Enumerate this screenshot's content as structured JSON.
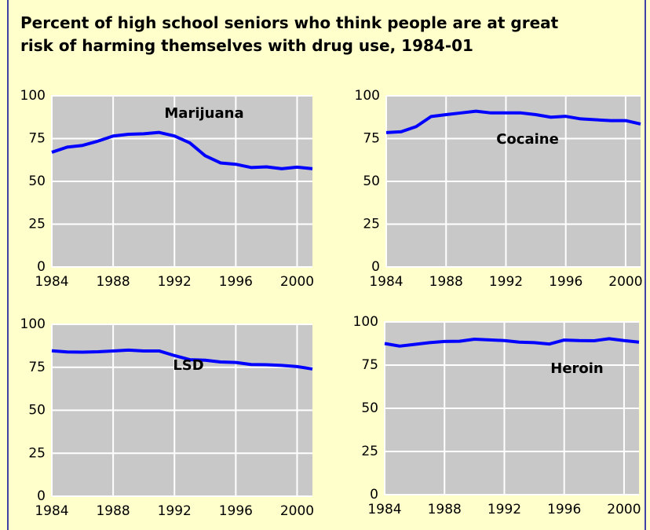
{
  "title": "Percent of high school seniors who think people are at great risk of harming themselves with drug use, 1984-01",
  "chart_data": [
    {
      "type": "line",
      "x": [
        1984,
        1985,
        1986,
        1987,
        1988,
        1989,
        1990,
        1991,
        1992,
        1993,
        1994,
        1995,
        1996,
        1997,
        1998,
        1999,
        2000,
        2001
      ],
      "series": [
        {
          "name": "Marijuana",
          "color": "#0000ff",
          "values": [
            67,
            70,
            71,
            73.5,
            76.5,
            77.5,
            77.8,
            78.6,
            76.5,
            72.5,
            65,
            60.8,
            60,
            58.1,
            58.5,
            57.4,
            58.3,
            57.4
          ]
        }
      ],
      "xlim": [
        1984,
        2001
      ],
      "xticks": [
        1984,
        1988,
        1992,
        1996,
        2000
      ],
      "ylim": [
        0,
        100
      ],
      "yticks": [
        0,
        25,
        50,
        75,
        100
      ],
      "grid": true
    },
    {
      "type": "line",
      "x": [
        1984,
        1985,
        1986,
        1987,
        1988,
        1989,
        1990,
        1991,
        1992,
        1993,
        1994,
        1995,
        1996,
        1997,
        1998,
        1999,
        2000,
        2001
      ],
      "series": [
        {
          "name": "Cocaine",
          "color": "#0000ff",
          "values": [
            78.5,
            79,
            82,
            87.9,
            89,
            90,
            91,
            90,
            90,
            90,
            89,
            87.5,
            88,
            86.5,
            86,
            85.5,
            85.5,
            83.5
          ]
        }
      ],
      "xlim": [
        1984,
        2001
      ],
      "xticks": [
        1984,
        1988,
        1992,
        1996,
        2000
      ],
      "ylim": [
        0,
        100
      ],
      "yticks": [
        0,
        25,
        50,
        75,
        100
      ],
      "grid": true
    },
    {
      "type": "line",
      "x": [
        1984,
        1985,
        1986,
        1987,
        1988,
        1989,
        1990,
        1991,
        1992,
        1993,
        1994,
        1995,
        1996,
        1997,
        1998,
        1999,
        2000,
        2001
      ],
      "series": [
        {
          "name": "LSD",
          "color": "#0000ff",
          "values": [
            84.6,
            83.9,
            83.8,
            84,
            84.5,
            85,
            84.5,
            84.5,
            81.8,
            79.4,
            79.1,
            78.1,
            77.8,
            76.6,
            76.5,
            76.1,
            75.4,
            74
          ]
        }
      ],
      "xlim": [
        1984,
        2001
      ],
      "xticks": [
        1984,
        1988,
        1992,
        1996,
        2000
      ],
      "ylim": [
        0,
        100
      ],
      "yticks": [
        0,
        25,
        50,
        75,
        100
      ],
      "grid": true
    },
    {
      "type": "line",
      "x": [
        1984,
        1985,
        1986,
        1987,
        1988,
        1989,
        1990,
        1991,
        1992,
        1993,
        1994,
        1995,
        1996,
        1997,
        1998,
        1999,
        2000,
        2001
      ],
      "series": [
        {
          "name": "Heroin",
          "color": "#0000ff",
          "values": [
            87.5,
            86,
            87,
            88,
            88.7,
            88.8,
            90,
            89.6,
            89.2,
            88.3,
            88,
            87.2,
            89.5,
            89.2,
            89.1,
            90.3,
            89.2,
            88.3
          ]
        }
      ],
      "xlim": [
        1984,
        2001
      ],
      "xticks": [
        1984,
        1988,
        1992,
        1996,
        2000
      ],
      "ylim": [
        0,
        100
      ],
      "yticks": [
        0,
        25,
        50,
        75,
        100
      ],
      "grid": true
    }
  ]
}
